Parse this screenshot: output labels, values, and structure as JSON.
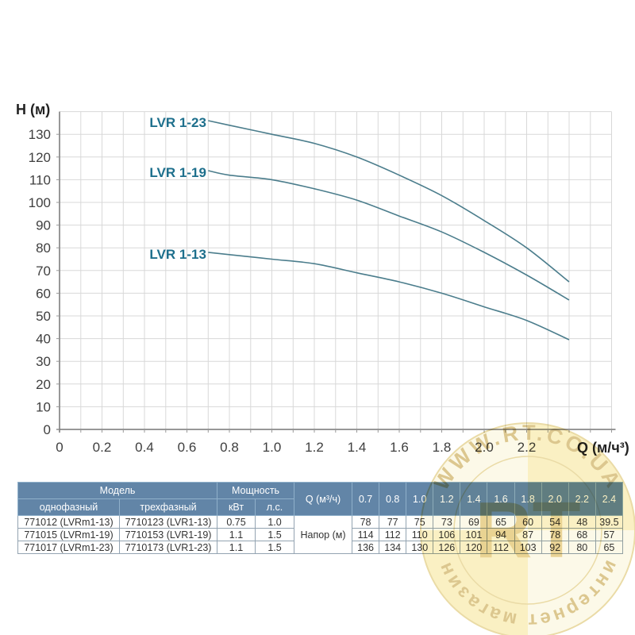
{
  "chart": {
    "y_axis_label": "H (м)",
    "x_axis_label": "Q (м/ч³)"
  },
  "chart_data": {
    "type": "line",
    "title": "",
    "xlabel": "Q (м/ч³)",
    "ylabel": "H (м)",
    "xlim": [
      0,
      2.6
    ],
    "ylim": [
      0,
      140
    ],
    "grid": true,
    "legend_position": "inline-left-of-curves",
    "x": [
      0.7,
      0.8,
      1.0,
      1.2,
      1.4,
      1.6,
      1.8,
      2.0,
      2.2,
      2.4
    ],
    "series": [
      {
        "name": "LVR 1-23",
        "values": [
          136,
          134,
          130,
          126,
          120,
          112,
          103,
          92,
          80,
          65
        ]
      },
      {
        "name": "LVR 1-19",
        "values": [
          114,
          112,
          110,
          106,
          101,
          94,
          87,
          78,
          68,
          57
        ]
      },
      {
        "name": "LVR 1-13",
        "values": [
          78,
          77,
          75,
          73,
          69,
          65,
          60,
          54,
          48,
          39.5
        ]
      }
    ],
    "x_tick_labels": [
      "0",
      "0.2",
      "0.4",
      "0.6",
      "0.8",
      "1.0",
      "1.2",
      "1.4",
      "1.6",
      "1.8",
      "2.0",
      "2.2"
    ],
    "x_tick_values": [
      0,
      0.2,
      0.4,
      0.6,
      0.8,
      1.0,
      1.2,
      1.4,
      1.6,
      1.8,
      2.0,
      2.2
    ],
    "y_tick_labels": [
      "0",
      "10",
      "20",
      "30",
      "40",
      "50",
      "60",
      "70",
      "80",
      "90",
      "100",
      "110",
      "120",
      "130"
    ],
    "y_tick_values": [
      0,
      10,
      20,
      30,
      40,
      50,
      60,
      70,
      80,
      90,
      100,
      110,
      120,
      130
    ],
    "colors": {
      "curve": "#4b7d8c",
      "curve_label": "#1d6f8c",
      "grid": "#d8d8d8",
      "axis": "#777777",
      "tick_text": "#3f3f3f"
    }
  },
  "table": {
    "header": {
      "model": "Модель",
      "power": "Мощность",
      "q_label": "Q (м³/ч)",
      "single_phase": "однофазный",
      "three_phase": "трехфазный",
      "kw": "кВт",
      "hp": "л.с.",
      "q_values": [
        "0.7",
        "0.8",
        "1.0",
        "1.2",
        "1.4",
        "1.6",
        "1.8",
        "2.0",
        "2.2",
        "2.4"
      ]
    },
    "head_row_label": "Напор (м)",
    "rows": [
      {
        "single": "771012 (LVRm1-13)",
        "three": "7710123 (LVR1-13)",
        "kw": "0.75",
        "hp": "1.0",
        "heads": [
          "78",
          "77",
          "75",
          "73",
          "69",
          "65",
          "60",
          "54",
          "48",
          "39.5"
        ]
      },
      {
        "single": "771015 (LVRm1-19)",
        "three": "7710153 (LVR1-19)",
        "kw": "1.1",
        "hp": "1.5",
        "heads": [
          "114",
          "112",
          "110",
          "106",
          "101",
          "94",
          "87",
          "78",
          "68",
          "57"
        ]
      },
      {
        "single": "771017 (LVRm1-23)",
        "three": "7710173 (LVR1-23)",
        "kw": "1.1",
        "hp": "1.5",
        "heads": [
          "136",
          "134",
          "130",
          "126",
          "120",
          "112",
          "103",
          "92",
          "80",
          "65"
        ]
      }
    ],
    "header_bg": "#6285a7"
  },
  "watermark": {
    "top_text": "WWW.RT.CO.UA",
    "bottom_text": "интернет магазин",
    "monogram": "RT",
    "gold": "#c09a33"
  }
}
